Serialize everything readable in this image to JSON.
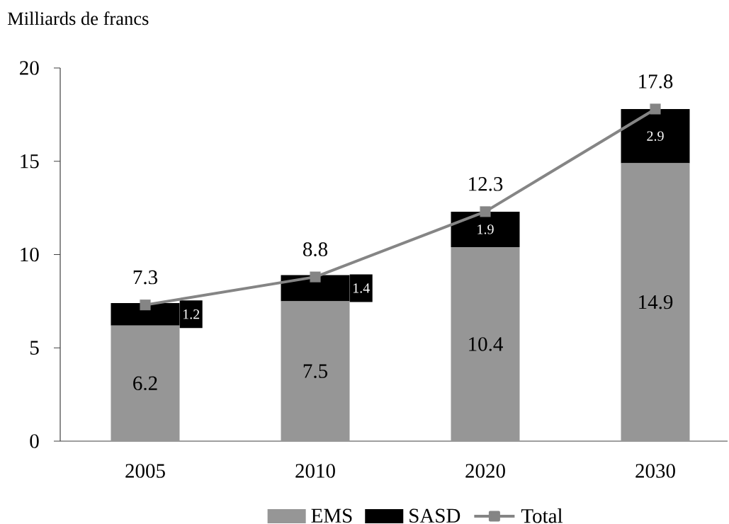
{
  "chart_data": {
    "type": "bar",
    "stacked": true,
    "ylabel": "Milliards de francs",
    "categories": [
      "2005",
      "2010",
      "2020",
      "2030"
    ],
    "series": [
      {
        "name": "EMS",
        "color": "#969696",
        "values": [
          6.2,
          7.5,
          10.4,
          14.9
        ]
      },
      {
        "name": "SASD",
        "color": "#000000",
        "values": [
          1.2,
          1.4,
          1.9,
          2.9
        ]
      },
      {
        "name": "Total",
        "type": "line",
        "color": "#858585",
        "values": [
          7.3,
          8.8,
          12.3,
          17.8
        ]
      }
    ],
    "ylim": [
      0,
      20
    ],
    "yticks": [
      0,
      5,
      10,
      15,
      20
    ],
    "data_labels": true,
    "legend": "bottom",
    "marker": "square"
  }
}
